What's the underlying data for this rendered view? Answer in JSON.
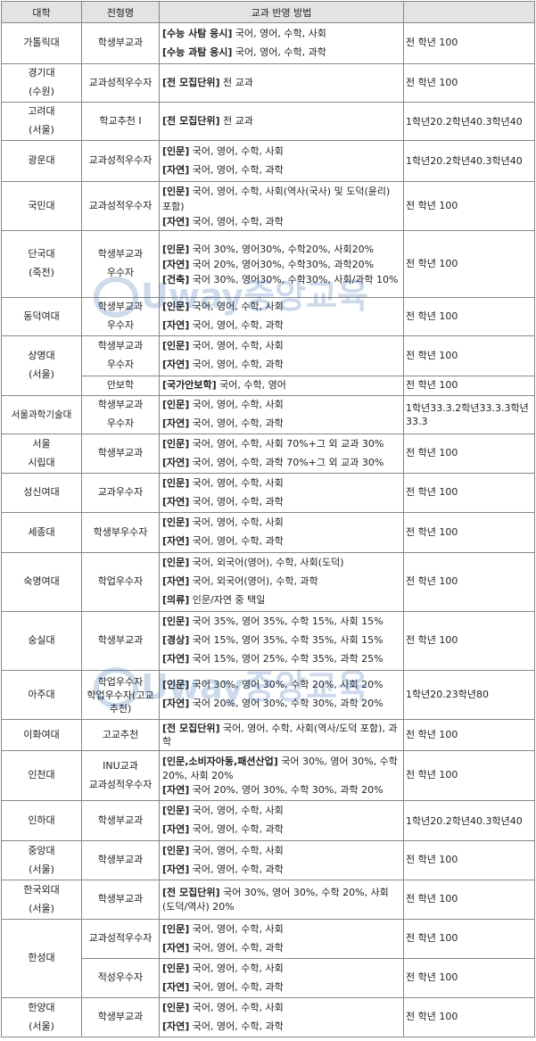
{
  "header": {
    "univ": "대학",
    "type": "전형명",
    "method": "교과 반영 방법",
    "grade": ""
  },
  "rows": {
    "r1": {
      "univ": "가톨릭대",
      "type": "학생부교과",
      "l1t": "[수능 사탐 응시]",
      "l1": " 국어, 영어, 수학, 사회",
      "l2t": "[수능 과탐 응시]",
      "l2": " 국어, 영어, 수학, 과학",
      "grade": "전 학년 100"
    },
    "r2": {
      "univ1": "경기대",
      "univ2": "(수원)",
      "type": "교과성적우수자",
      "l1t": "[전 모집단위]",
      "l1": " 전 교과",
      "grade": "전 학년 100"
    },
    "r3": {
      "univ1": "고려대",
      "univ2": "(서울)",
      "type": "학교추천 I",
      "l1t": "[전 모집단위]",
      "l1": " 전 교과",
      "grade": "1학년20.2학년40.3학년40"
    },
    "r4": {
      "univ": "광운대",
      "type": "교과성적우수자",
      "l1t": "[인문]",
      "l1": " 국어, 영어, 수학, 사회",
      "l2t": "[자연]",
      "l2": " 국어, 영어, 수학, 과학",
      "grade": "1학년20.2학년40.3학년40"
    },
    "r5": {
      "univ": "국민대",
      "type": "교과성적우수자",
      "l1t": "[인문]",
      "l1": " 국어, 영어, 수학, 사회(역사(국사) 및 도덕(윤리) 포함)",
      "l2t": "[자연]",
      "l2": " 국어, 영어, 수학, 과학",
      "grade": "전 학년 100"
    },
    "r6": {
      "univ1": "단국대",
      "univ2": "(죽전)",
      "type1": "학생부교과",
      "type2": "우수자",
      "l1t": "[인문]",
      "l1": " 국어 30%, 영어30%, 수학20%, 사회20%",
      "l2t": "[자연]",
      "l2": " 국어 20%, 영어30%, 수학30%, 과학20%",
      "l3t": "[건축]",
      "l3": " 국어 30%, 영어30%, 수학30%, 사회/과학 10%",
      "grade": "전 학년 100"
    },
    "r7": {
      "univ": "동덕여대",
      "type1": "학생부교과",
      "type2": "우수자",
      "l1t": "[인문]",
      "l1": " 국어, 영어, 수학, 사회",
      "l2t": "[자연]",
      "l2": " 국어, 영어, 수학, 과학",
      "grade": "전 학년 100"
    },
    "r8": {
      "univ1": "상명대",
      "univ2": "(서울)",
      "type1": "학생부교과",
      "type2": "우수자",
      "l1t": "[인문]",
      "l1": " 국어, 영어, 수학, 사회",
      "l2t": "[자연]",
      "l2": " 국어, 영어, 수학, 과학",
      "grade": "전 학년 100"
    },
    "r8b": {
      "type": "안보학",
      "l1t": "[국가안보학]",
      "l1": " 국어, 수학, 영어",
      "grade": "전 학년 100"
    },
    "r9": {
      "univ": "서울과학기술대",
      "type1": "학생부교과",
      "type2": "우수자",
      "l1t": "[인문]",
      "l1": " 국어, 영어, 수학, 사회",
      "l2t": "[자연]",
      "l2": " 국어, 영어, 수학, 과학",
      "grade": "1학년33.3.2학년33.3.3학년33.3"
    },
    "r10": {
      "univ1": "서울",
      "univ2": "시립대",
      "type": "학생부교과",
      "l1t": "[인문]",
      "l1": " 국어, 영어, 수학, 사회 70%+그 외 교과 30%",
      "l2t": "[자연]",
      "l2": " 국어, 영어, 수학, 과학 70%+그 외 교과 30%",
      "grade": "전 학년 100"
    },
    "r11": {
      "univ": "성신여대",
      "type": "교과우수자",
      "l1t": "[인문]",
      "l1": " 국어, 영어, 수학, 사회",
      "l2t": "[자연]",
      "l2": " 국어, 영어, 수학, 과학",
      "grade": "전 학년 100"
    },
    "r12": {
      "univ": "세종대",
      "type": "학생부우수자",
      "l1t": "[인문]",
      "l1": " 국어, 영어, 수학, 사회",
      "l2t": "[자연]",
      "l2": " 국어, 영어, 수학, 과학",
      "grade": "전 학년 100"
    },
    "r13": {
      "univ": "숙명여대",
      "type": "학업우수자",
      "l1t": "[인문]",
      "l1": " 국어, 외국어(영어), 수학, 사회(도덕)",
      "l2t": "[자연]",
      "l2": " 국어, 외국어(영어), 수학, 과학",
      "l3t": "[의류]",
      "l3": " 인문/자연 중 택일",
      "grade": "전 학년 100"
    },
    "r14": {
      "univ": "숭실대",
      "type": "학생부교과",
      "l1t": "[인문]",
      "l1": " 국어 35%, 영어 35%, 수학 15%, 사회 15%",
      "l2t": "[경상]",
      "l2": " 국어 15%, 영어 35%, 수학 35%, 사회 15%",
      "l3t": "[자연]",
      "l3": " 국어 15%, 영어 25%, 수학 35%, 과학 25%",
      "grade": "전 학년 100"
    },
    "r15": {
      "univ": "아주대",
      "type1": "학업우수자",
      "type2": "학업우수자(고교추천)",
      "l1t": "[인문]",
      "l1": " 국어 30%, 영어 30%, 수학 20%, 사회 20%",
      "l2t": "[자연]",
      "l2": " 국어 20%, 영어 30%, 수학 30%, 과학 20%",
      "grade": "1학년20.23학년80"
    },
    "r16": {
      "univ": "이화여대",
      "type": "고교추천",
      "l1t": "[전 모집단위]",
      "l1": " 국어, 영어, 수학, 사회(역사/도덕 포함), 과학",
      "grade": "전 학년 100"
    },
    "r17": {
      "univ": "인천대",
      "type1": "INU교과",
      "type2": "교과성적우수자",
      "l1t": "[인문,소비자아동,패션산업]",
      "l1": " 국어 30%, 영어 30%, 수학 20%, 사회 20%",
      "l2t": "[자연]",
      "l2": " 국어 20%, 영어 30%, 수학 30%, 과학 20%",
      "grade": "전 학년 100"
    },
    "r18": {
      "univ": "인하대",
      "type": "학생부교과",
      "l1t": "[인문]",
      "l1": " 국어, 영어, 수학, 사회",
      "l2t": "[자연]",
      "l2": " 국어, 영어, 수학, 과학",
      "grade": "1학년20.2학년40.3학년40"
    },
    "r19": {
      "univ1": "중앙대",
      "univ2": "(서울)",
      "type": "학생부교과",
      "l1t": "[인문]",
      "l1": " 국어, 영어, 수학, 사회",
      "l2t": "[자연]",
      "l2": " 국어, 영어, 수학, 과학",
      "grade": "전 학년 100"
    },
    "r20": {
      "univ1": "한국외대",
      "univ2": "(서울)",
      "type": "학생부교과",
      "l1t": "[전 모집단위]",
      "l1": " 국어 30%, 영어 30%, 수학 20%, 사회(도덕/역사) 20%",
      "grade": "전 학년 100"
    },
    "r21": {
      "univ": "한성대",
      "type": "교과성적우수자",
      "l1t": "[인문]",
      "l1": " 국어, 영어, 수학, 사회",
      "l2t": "[자연]",
      "l2": " 국어, 영어, 수학, 과학",
      "grade": "전 학년 100"
    },
    "r21b": {
      "type": "적성우수자",
      "l1t": "[인문]",
      "l1": " 국어, 영어, 수학, 사회",
      "l2t": "[자연]",
      "l2": " 국어, 영어, 수학, 과학",
      "grade": "전 학년 100"
    },
    "r22": {
      "univ1": "한양대",
      "univ2": "(서울)",
      "type": "학생부교과",
      "l1t": "[인문]",
      "l1": " 국어, 영어, 수학, 사회",
      "l2t": "[자연]",
      "l2": " 국어, 영어, 수학, 과학",
      "grade": "전 학년 100"
    }
  },
  "watermark": {
    "text": "Uway중앙교육",
    "color": "#1e5aa8"
  }
}
